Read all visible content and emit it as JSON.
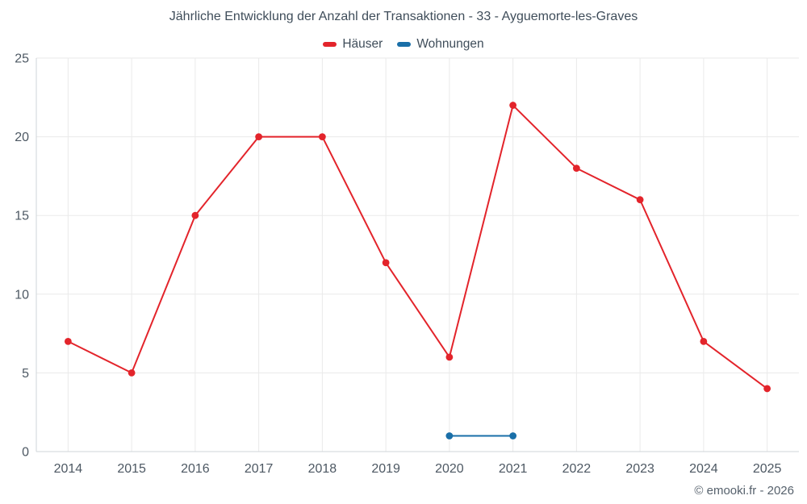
{
  "title": "Jährliche Entwicklung der Anzahl der Transaktionen - 33 - Ayguemorte-les-Graves",
  "footer": "© emooki.fr - 2026",
  "chart_data": {
    "type": "line",
    "categories": [
      "2014",
      "2015",
      "2016",
      "2017",
      "2018",
      "2019",
      "2020",
      "2021",
      "2022",
      "2023",
      "2024",
      "2025"
    ],
    "series": [
      {
        "name": "Häuser",
        "color": "#e3242b",
        "values": [
          7,
          5,
          15,
          20,
          20,
          12,
          6,
          22,
          18,
          16,
          7,
          4
        ]
      },
      {
        "name": "Wohnungen",
        "color": "#1a6fa8",
        "values": [
          null,
          null,
          null,
          null,
          null,
          null,
          1,
          1,
          null,
          null,
          null,
          null
        ]
      }
    ],
    "ylim": [
      0,
      25
    ],
    "yticks": [
      0,
      5,
      10,
      15,
      20,
      25
    ],
    "grid": true,
    "legend_position": "top",
    "xlabel": "",
    "ylabel": ""
  },
  "style": {
    "grid_color": "#eaeaea",
    "axis_color": "#cfd4d8",
    "marker_radius": 4.4,
    "line_width": 2
  }
}
